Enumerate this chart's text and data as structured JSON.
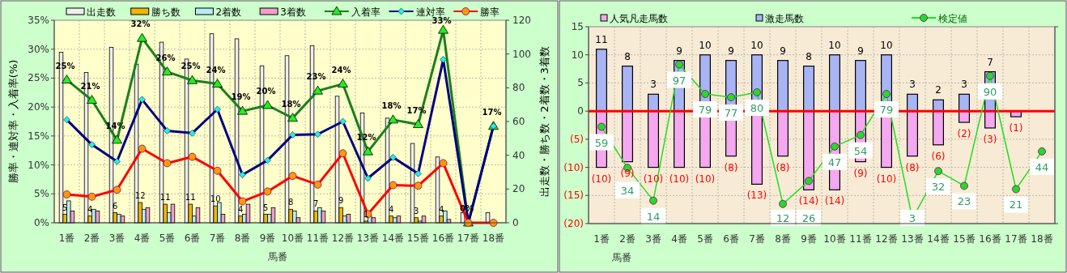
{
  "chart_data": [
    {
      "type": "bar",
      "ylabel": "勝率・連対率・入着率(%)",
      "y2label": "出走数・勝ち数・2着数・3着数",
      "xlabel": "馬番",
      "categories": [
        "1番",
        "2番",
        "3番",
        "4番",
        "5番",
        "6番",
        "7番",
        "8番",
        "9番",
        "10番",
        "11番",
        "12番",
        "13番",
        "14番",
        "15番",
        "16番",
        "17番",
        "18番"
      ],
      "ylim": [
        0,
        35
      ],
      "yticks": [
        {
          "value": 0,
          "label": "0%"
        },
        {
          "value": 5,
          "label": "5%"
        },
        {
          "value": 10,
          "label": "10%"
        },
        {
          "value": 15,
          "label": "15%"
        },
        {
          "value": 20,
          "label": "20%"
        },
        {
          "value": 25,
          "label": "25%"
        },
        {
          "value": 30,
          "label": "30%"
        },
        {
          "value": 35,
          "label": "35%"
        }
      ],
      "y2lim": [
        0,
        120
      ],
      "y2ticks": [
        0,
        20,
        40,
        60,
        80,
        100,
        120
      ],
      "grid": true,
      "legend": "top",
      "series": [
        {
          "name": "出走数",
          "type": "bar",
          "axis": "y2",
          "color": "#eeeeee",
          "values": [
            101,
            89,
            104,
            94,
            107,
            97,
            112,
            109,
            93,
            99,
            105,
            75,
            65,
            62,
            47,
            39,
            6,
            6
          ]
        },
        {
          "name": "勝ち数",
          "type": "bar",
          "axis": "y2",
          "color": "#f0b800",
          "values": [
            5,
            4,
            6,
            12,
            11,
            11,
            10,
            4,
            5,
            8,
            7,
            9,
            1,
            4,
            3,
            4,
            0,
            0
          ],
          "value_labels": [
            "5",
            "4",
            "6",
            "12",
            "11",
            "11",
            "10",
            "4",
            "5",
            "8",
            "7",
            "9",
            "1",
            "4",
            "3",
            "4",
            null,
            null
          ]
        },
        {
          "name": "2着数",
          "type": "bar",
          "axis": "y2",
          "color": "#b8ecf4",
          "values": [
            13,
            8,
            5,
            8,
            6,
            4,
            12,
            5,
            5,
            7,
            9,
            4,
            4,
            3,
            1,
            7,
            0,
            0
          ]
        },
        {
          "name": "3着数",
          "type": "bar",
          "axis": "y2",
          "color": "#f0a0c8",
          "values": [
            7,
            7,
            4,
            9,
            11,
            9,
            5,
            11,
            9,
            3,
            7,
            5,
            3,
            4,
            4,
            2,
            0,
            0
          ]
        },
        {
          "name": "入着率",
          "type": "line",
          "color": "#1a801a",
          "marker": "triangle",
          "values": [
            24.7,
            21.2,
            14.3,
            31.9,
            26.1,
            24.6,
            24.0,
            19.3,
            20.3,
            18.1,
            22.8,
            24.0,
            12.3,
            17.8,
            17.0,
            33.3,
            0,
            16.7
          ],
          "value_labels": [
            "25%",
            "21%",
            "14%",
            "32%",
            "26%",
            "25%",
            "24%",
            "19%",
            "20%",
            "18%",
            "23%",
            "24%",
            "12%",
            "18%",
            "17%",
            "33%",
            "0%",
            "17%"
          ]
        },
        {
          "name": "連対率",
          "type": "line",
          "color": "#000080",
          "marker": "diamond",
          "values": [
            17.8,
            13.5,
            10.6,
            21.3,
            15.9,
            15.5,
            19.6,
            8.3,
            10.8,
            15.2,
            15.3,
            17.5,
            7.7,
            11.3,
            8.5,
            28.2,
            0,
            16.7
          ]
        },
        {
          "name": "勝率",
          "type": "line",
          "color": "#ff0000",
          "marker": "circle",
          "values": [
            4.9,
            4.5,
            5.7,
            12.8,
            10.3,
            11.4,
            9.0,
            3.7,
            5.4,
            8.1,
            6.6,
            12.0,
            1.5,
            6.5,
            6.4,
            10.3,
            0,
            0
          ]
        }
      ]
    },
    {
      "type": "bar",
      "xlabel": "馬番",
      "stacked": true,
      "categories": [
        "1番",
        "2番",
        "3番",
        "4番",
        "5番",
        "6番",
        "7番",
        "8番",
        "9番",
        "10番",
        "11番",
        "12番",
        "13番",
        "14番",
        "15番",
        "16番",
        "17番",
        "18番"
      ],
      "ylim": [
        -20,
        15
      ],
      "yticks": [
        15,
        10,
        5,
        0,
        {
          "value": -5,
          "label": "(5)"
        },
        {
          "value": -10,
          "label": "(10)"
        },
        {
          "value": -15,
          "label": "(15)"
        },
        {
          "value": -20,
          "label": "(20)"
        }
      ],
      "y2lim": [
        0,
        120
      ],
      "y2ticks": [
        {
          "value": 0,
          "label": null
        },
        {
          "value": 120,
          "label": null
        }
      ],
      "grid": true,
      "legend": "top",
      "ref_lines": [
        {
          "axis": "y",
          "value": 0,
          "color": "#ff0000"
        }
      ],
      "series": [
        {
          "name": "人気凡走馬数",
          "type": "bar",
          "color": "#f4a8f0",
          "values": [
            -10,
            -9,
            -10,
            -10,
            -10,
            -8,
            -13,
            -8,
            -14,
            -14,
            -9,
            -10,
            -8,
            -6,
            -2,
            -3,
            -1,
            null
          ],
          "value_labels": [
            "(10)",
            "(9)",
            "(10)",
            "(10)",
            "(10)",
            "(8)",
            "(13)",
            "(8)",
            "(14)",
            "(14)",
            "(9)",
            "(10)",
            "(8)",
            "(6)",
            "(2)",
            "(3)",
            "(1)",
            null
          ]
        },
        {
          "name": "激走馬数",
          "type": "bar",
          "color": "#a8b4f4",
          "values": [
            11,
            8,
            3,
            9,
            10,
            9,
            10,
            9,
            8,
            10,
            9,
            10,
            3,
            2,
            3,
            7,
            null,
            null
          ],
          "value_labels": [
            "11",
            "8",
            "3",
            "9",
            "10",
            "9",
            "10",
            "9",
            "8",
            "10",
            "9",
            "10",
            "3",
            "2",
            "3",
            "7",
            null,
            null
          ]
        },
        {
          "name": "検定値",
          "type": "line",
          "axis": "y2",
          "color": "#22dd22",
          "marker": "circle",
          "values": [
            59,
            34,
            14,
            97,
            79,
            77,
            80,
            12,
            26,
            47,
            54,
            79,
            3,
            32,
            23,
            90,
            21,
            44
          ],
          "value_labels": [
            "59",
            "34",
            "14",
            "97",
            "79",
            "77",
            "80",
            "12",
            "26",
            "47",
            "54",
            "79",
            "3",
            "32",
            "23",
            "90",
            "21",
            "44"
          ]
        }
      ]
    }
  ]
}
